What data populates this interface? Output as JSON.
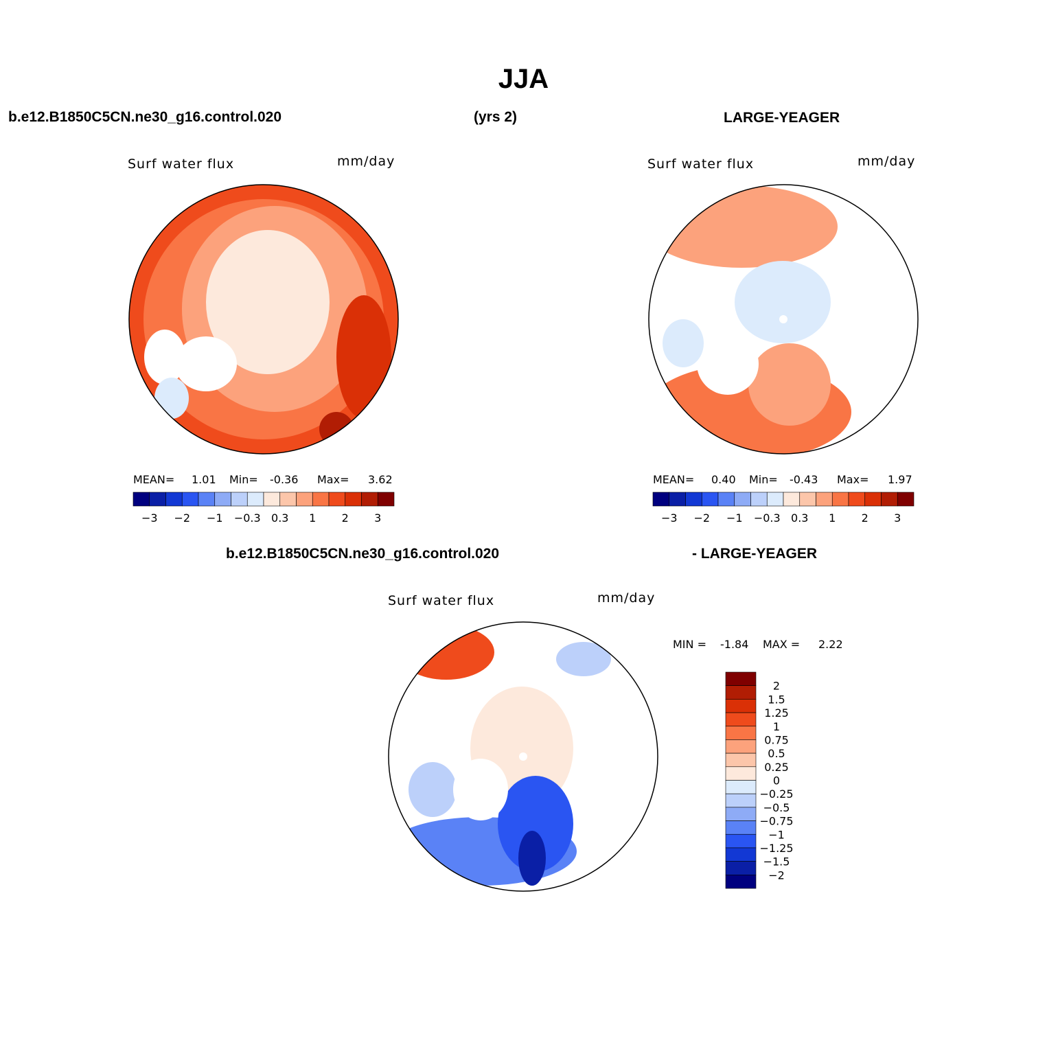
{
  "header": {
    "title": "JJA",
    "case_label": "b.e12.B1850C5CN.ne30_g16.control.020",
    "years_label": "(yrs 2)",
    "obs_label": "LARGE-YEAGER",
    "diff_case_label": "b.e12.B1850C5CN.ne30_g16.control.020",
    "diff_obs_label": "- LARGE-YEAGER"
  },
  "colors": {
    "scale": [
      "#00007f",
      "#0a1fa6",
      "#1238d4",
      "#2a55f2",
      "#5a82f6",
      "#8eabf6",
      "#bcd0fa",
      "#dcebfc",
      "#fde9dc",
      "#fcc6aa",
      "#fca27c",
      "#f97545",
      "#ef4b1c",
      "#da3006",
      "#b11d04",
      "#7f0000"
    ],
    "coast": "#000000"
  },
  "chart_data": [
    {
      "type": "polar-map",
      "variable": "Surf water flux",
      "units": "mm/day",
      "stats": {
        "mean_label": "MEAN=",
        "mean": "1.01",
        "min_label": "Min=",
        "min": "-0.36",
        "max_label": "Max=",
        "max": "3.62"
      },
      "colorbar_ticks": [
        "-3",
        "-2",
        "-1",
        "-0.3",
        "0.3",
        "1",
        "2",
        "3"
      ]
    },
    {
      "type": "polar-map",
      "variable": "Surf water flux",
      "units": "mm/day",
      "stats": {
        "mean_label": "MEAN=",
        "mean": "0.40",
        "min_label": "Min=",
        "min": "-0.43",
        "max_label": "Max=",
        "max": "1.97"
      },
      "colorbar_ticks": [
        "-3",
        "-2",
        "-1",
        "-0.3",
        "0.3",
        "1",
        "2",
        "3"
      ]
    },
    {
      "type": "polar-map",
      "variable": "Surf water flux",
      "units": "mm/day",
      "stats": {
        "min_label": "MIN =",
        "min": "-1.84",
        "max_label": "MAX =",
        "max": "2.22"
      },
      "colorbar_ticks": [
        "2",
        "1.5",
        "1.25",
        "1",
        "0.75",
        "0.5",
        "0.25",
        "0",
        "-0.25",
        "-0.5",
        "-0.75",
        "-1",
        "-1.25",
        "-1.5",
        "-2"
      ]
    }
  ]
}
